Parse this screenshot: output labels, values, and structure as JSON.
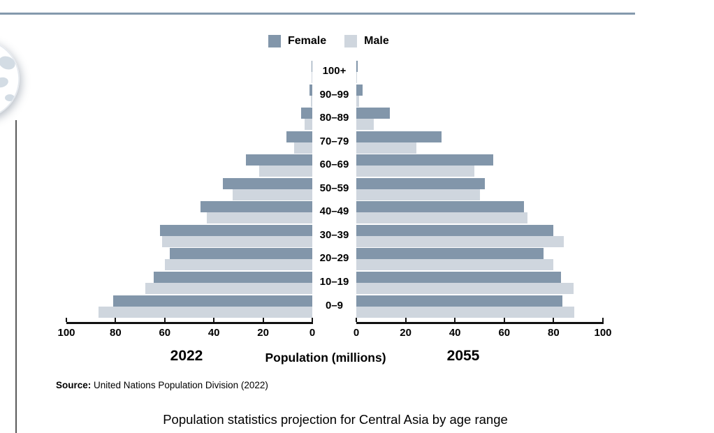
{
  "page": {
    "title": "Population statistics projection for Central Asia by age range",
    "source_label": "Source:",
    "source_text": " United Nations Population Division (2022)"
  },
  "legend": {
    "female_label": "Female",
    "male_label": "Male"
  },
  "colors": {
    "female": "#8296aa",
    "male": "#cfd6de",
    "top_rule": "#8499ad",
    "axis": "#111111",
    "globe_land": "#ccd6e0"
  },
  "chart_data": {
    "type": "bar",
    "subtype": "population-pyramid",
    "title": "Population statistics projection for Central Asia by age range",
    "xlabel": "Population (millions)",
    "unit": "millions",
    "xlim": [
      0,
      100
    ],
    "grid": false,
    "legend_position": "top-center",
    "age_groups": [
      "100+",
      "90–99",
      "80–89",
      "70–79",
      "60–69",
      "50–59",
      "40–49",
      "30–39",
      "20–29",
      "10–19",
      "0–9"
    ],
    "left_panel": {
      "year": "2022",
      "direction": "right-to-left",
      "axis_ticks": [
        100,
        80,
        60,
        40,
        20,
        0
      ],
      "series": [
        {
          "name": "Female",
          "values": [
            0.3,
            1.0,
            4.5,
            10.5,
            27.0,
            36.5,
            45.5,
            62.0,
            58.0,
            64.5,
            81.0
          ]
        },
        {
          "name": "Male",
          "values": [
            0.2,
            0.5,
            3.0,
            7.5,
            21.5,
            32.5,
            43.0,
            61.0,
            60.0,
            68.0,
            87.0
          ]
        }
      ]
    },
    "right_panel": {
      "year": "2055",
      "direction": "left-to-right",
      "axis_ticks": [
        0,
        20,
        40,
        60,
        80,
        100
      ],
      "series": [
        {
          "name": "Female",
          "values": [
            0.5,
            2.5,
            13.5,
            34.5,
            55.5,
            52.0,
            68.0,
            80.0,
            76.0,
            83.0,
            83.5
          ]
        },
        {
          "name": "Male",
          "values": [
            0.3,
            1.0,
            7.0,
            24.5,
            48.0,
            50.0,
            69.5,
            84.0,
            80.0,
            88.0,
            88.5
          ]
        }
      ]
    }
  }
}
